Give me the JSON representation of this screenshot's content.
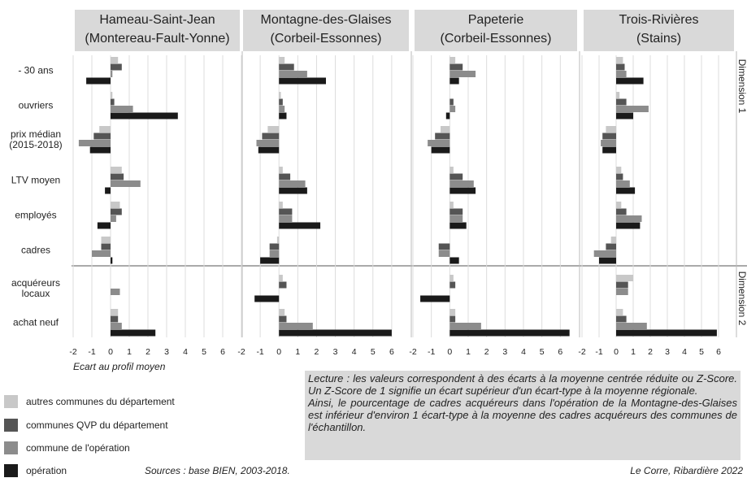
{
  "chart_data": {
    "type": "bar",
    "orientation": "horizontal",
    "categories": [
      "- 30 ans",
      "ouvriers",
      "prix médian (2015-2018)",
      "LTV moyen",
      "employés",
      "cadres",
      "acquéreurs locaux",
      "achat neuf"
    ],
    "groups": [
      {
        "label": "Dimension 1",
        "count": 6
      },
      {
        "label": "Dimension 2",
        "count": 2
      }
    ],
    "series": [
      {
        "name": "autres communes du département",
        "color": "#c8c8c8"
      },
      {
        "name": "communes QVP du département",
        "color": "#555555"
      },
      {
        "name": "commune de l'opération",
        "color": "#8c8c8c"
      },
      {
        "name": "opération",
        "color": "#1a1a1a"
      }
    ],
    "xlim": [
      -2,
      7
    ],
    "xticks": [
      -2,
      -1,
      0,
      1,
      2,
      3,
      4,
      5,
      6
    ],
    "grid": true,
    "xlabel": "Ecart au profil moyen",
    "panels": [
      {
        "title": [
          "Hameau-Saint-Jean",
          "(Montereau-Fault-Yonne)"
        ],
        "series": [
          {
            "values": [
              0.4,
              0.1,
              -0.6,
              0.6,
              0.5,
              -0.5,
              0,
              0.4
            ]
          },
          {
            "values": [
              0.6,
              0.2,
              -0.9,
              0.7,
              0.6,
              -0.5,
              0,
              0.4
            ]
          },
          {
            "values": [
              0.1,
              1.2,
              -1.7,
              1.6,
              0.3,
              -1.0,
              0.5,
              0.6
            ]
          },
          {
            "values": [
              -1.3,
              3.6,
              -1.1,
              -0.3,
              -0.7,
              0.1,
              0,
              2.4
            ]
          }
        ]
      },
      {
        "title": [
          "Montagne-des-Glaises",
          "(Corbeil-Essonnes)"
        ],
        "series": [
          {
            "values": [
              0.3,
              0.1,
              -0.6,
              0.2,
              0.2,
              -0.1,
              0.2,
              0.3
            ]
          },
          {
            "values": [
              0.8,
              0.2,
              -0.9,
              0.6,
              0.7,
              -0.5,
              0.4,
              0.4
            ]
          },
          {
            "values": [
              1.5,
              0.3,
              -1.2,
              1.4,
              0.7,
              -0.5,
              0,
              1.8
            ]
          },
          {
            "values": [
              2.5,
              0.4,
              -1.1,
              1.5,
              2.2,
              -1.0,
              -1.3,
              6.0
            ]
          }
        ]
      },
      {
        "title": [
          "Papeterie",
          "(Corbeil-Essonnes)"
        ],
        "series": [
          {
            "values": [
              0.3,
              0,
              -0.5,
              0.2,
              0.2,
              0,
              0.2,
              0.3
            ]
          },
          {
            "values": [
              0.7,
              0.2,
              -0.8,
              0.7,
              0.7,
              -0.6,
              0.3,
              0.3
            ]
          },
          {
            "values": [
              1.4,
              0.3,
              -1.2,
              1.3,
              0.7,
              -0.6,
              0,
              1.7
            ]
          },
          {
            "values": [
              0.5,
              -0.2,
              -1.0,
              1.4,
              0.9,
              0.5,
              -1.6,
              6.5
            ]
          }
        ]
      },
      {
        "title": [
          "Trois-Rivières",
          "(Stains)"
        ],
        "series": [
          {
            "values": [
              0.4,
              0.2,
              -0.6,
              0.3,
              0.3,
              -0.3,
              1.0,
              0.4
            ]
          },
          {
            "values": [
              0.5,
              0.6,
              -0.8,
              0.4,
              0.6,
              -0.6,
              0.7,
              0.6
            ]
          },
          {
            "values": [
              0.6,
              1.9,
              -0.9,
              0.8,
              1.5,
              -1.3,
              0.7,
              1.8
            ]
          },
          {
            "values": [
              1.6,
              1.0,
              -0.8,
              1.1,
              1.4,
              -1.0,
              0,
              5.9
            ]
          }
        ]
      }
    ],
    "lecture": [
      "Lecture : les valeurs correspondent à des écarts à la moyenne centrée réduite ou Z-Score. Un Z-Score de 1 signifie un écart supérieur d'un écart-type à la moyenne régionale.",
      "Ainsi, le pourcentage de cadres acquéreurs dans l'opération de la Montagne-des-Glaises est inférieur d'environ 1 écart-type à la moyenne des cadres acquéreurs des communes de l'échantillon."
    ],
    "source": "Sources : base BIEN, 2003-2018.",
    "credit": "Le Corre, Ribardière 2022"
  }
}
